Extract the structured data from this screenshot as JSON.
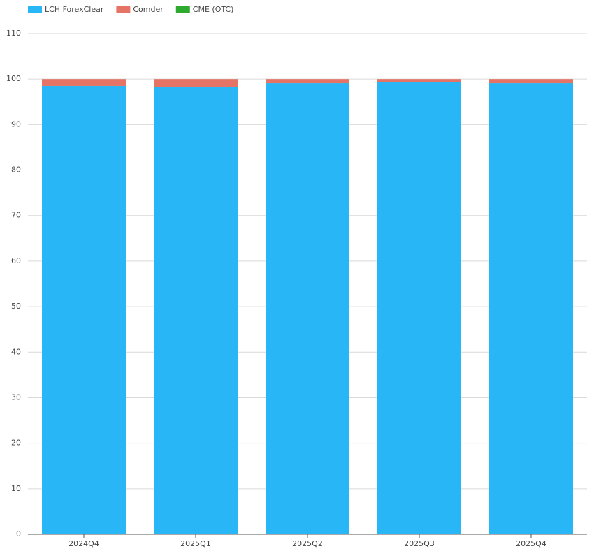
{
  "chart_data": {
    "type": "stacked_bar",
    "categories": [
      "2024Q4",
      "2025Q1",
      "2025Q2",
      "2025Q3",
      "2025Q4"
    ],
    "series": [
      {
        "name": "LCH ForexClear",
        "color": "#29b6f6",
        "values": [
          98.5,
          98.3,
          99.1,
          99.3,
          99.1
        ]
      },
      {
        "name": "Comder",
        "color": "#e57366",
        "values": [
          1.5,
          1.7,
          0.9,
          0.7,
          0.9
        ]
      },
      {
        "name": "CME (OTC)",
        "color": "#2eaa2e",
        "values": [
          0,
          0,
          0,
          0,
          0
        ]
      }
    ],
    "ylim": [
      0,
      110
    ],
    "yticks": [
      0,
      10,
      20,
      30,
      40,
      50,
      60,
      70,
      80,
      90,
      100,
      110
    ],
    "grid": true,
    "legend": "top-left"
  }
}
